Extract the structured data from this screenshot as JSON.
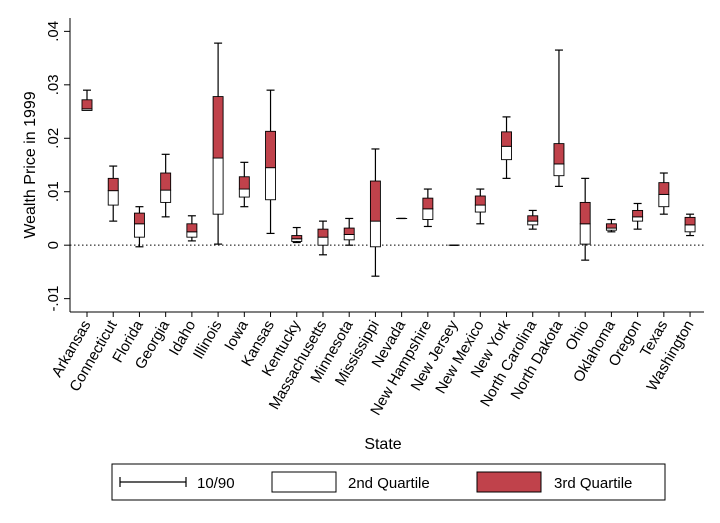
{
  "chart_data": {
    "type": "box",
    "xlabel": "State",
    "ylabel": "Wealth Price in 1999",
    "ylim": [
      -0.0125,
      0.0425
    ],
    "yticks": [
      -0.01,
      0,
      0.01,
      0.02,
      0.03,
      0.04
    ],
    "ytick_labels": [
      "-.01",
      "0",
      ".01",
      ".02",
      ".03",
      ".04"
    ],
    "zero_line": "dotted",
    "grid": false,
    "legend_position": "bottom",
    "legend": {
      "whisker": "10/90",
      "q2": "2nd Quartile",
      "q3": "3rd Quartile"
    },
    "colors": {
      "q2": "#ffffff",
      "q3": "#c0424b",
      "stroke": "#000000"
    },
    "categories": [
      "Arkansas",
      "Connecticut",
      "Florida",
      "Georgia",
      "Idaho",
      "Illinois",
      "Iowa",
      "Kansas",
      "Kentucky",
      "Massachusetts",
      "Minnesota",
      "Mississippi",
      "Nevada",
      "New Hampshire",
      "New Jersey",
      "New Mexico",
      "New York",
      "North Carolina",
      "North Dakota",
      "Ohio",
      "Oklahoma",
      "Oregon",
      "Texas",
      "Washington"
    ],
    "boxes": [
      {
        "p10": 0.0253,
        "q1": 0.0252,
        "median": 0.0255,
        "q3": 0.0272,
        "p90": 0.029
      },
      {
        "p10": 0.0045,
        "q1": 0.0075,
        "median": 0.0102,
        "q3": 0.0125,
        "p90": 0.0148
      },
      {
        "p10": -0.0003,
        "q1": 0.0015,
        "median": 0.004,
        "q3": 0.006,
        "p90": 0.0072
      },
      {
        "p10": 0.0053,
        "q1": 0.008,
        "median": 0.0103,
        "q3": 0.0135,
        "p90": 0.017
      },
      {
        "p10": 0.0008,
        "q1": 0.0015,
        "median": 0.0025,
        "q3": 0.004,
        "p90": 0.0055
      },
      {
        "p10": 0.0002,
        "q1": 0.0058,
        "median": 0.0163,
        "q3": 0.0278,
        "p90": 0.0378
      },
      {
        "p10": 0.0072,
        "q1": 0.009,
        "median": 0.0105,
        "q3": 0.0128,
        "p90": 0.0155
      },
      {
        "p10": 0.0022,
        "q1": 0.0085,
        "median": 0.0145,
        "q3": 0.0213,
        "p90": 0.029
      },
      {
        "p10": 0.0005,
        "q1": 0.0007,
        "median": 0.0012,
        "q3": 0.0018,
        "p90": 0.0033
      },
      {
        "p10": -0.0018,
        "q1": 0.0,
        "median": 0.0015,
        "q3": 0.003,
        "p90": 0.0045
      },
      {
        "p10": 0.0,
        "q1": 0.001,
        "median": 0.002,
        "q3": 0.0032,
        "p90": 0.005
      },
      {
        "p10": -0.0058,
        "q1": -0.0003,
        "median": 0.0045,
        "q3": 0.012,
        "p90": 0.018
      },
      {
        "p10": 0.005,
        "q1": 0.005,
        "median": 0.005,
        "q3": 0.005,
        "p90": 0.005
      },
      {
        "p10": 0.0035,
        "q1": 0.0048,
        "median": 0.0068,
        "q3": 0.0088,
        "p90": 0.0105
      },
      {
        "p10": 0.0,
        "q1": 0.0,
        "median": 0.0,
        "q3": 0.0,
        "p90": 0.0
      },
      {
        "p10": 0.004,
        "q1": 0.0062,
        "median": 0.0075,
        "q3": 0.0092,
        "p90": 0.0105
      },
      {
        "p10": 0.0125,
        "q1": 0.016,
        "median": 0.0185,
        "q3": 0.0212,
        "p90": 0.024
      },
      {
        "p10": 0.003,
        "q1": 0.0038,
        "median": 0.0045,
        "q3": 0.0055,
        "p90": 0.0065
      },
      {
        "p10": 0.011,
        "q1": 0.013,
        "median": 0.0152,
        "q3": 0.019,
        "p90": 0.0365
      },
      {
        "p10": -0.0028,
        "q1": 0.0002,
        "median": 0.004,
        "q3": 0.008,
        "p90": 0.0125
      },
      {
        "p10": 0.0025,
        "q1": 0.0028,
        "median": 0.0032,
        "q3": 0.004,
        "p90": 0.0048
      },
      {
        "p10": 0.003,
        "q1": 0.0045,
        "median": 0.0053,
        "q3": 0.0065,
        "p90": 0.0078
      },
      {
        "p10": 0.0058,
        "q1": 0.0072,
        "median": 0.0095,
        "q3": 0.0117,
        "p90": 0.0135
      },
      {
        "p10": 0.0018,
        "q1": 0.0025,
        "median": 0.0038,
        "q3": 0.0052,
        "p90": 0.0058
      }
    ]
  }
}
